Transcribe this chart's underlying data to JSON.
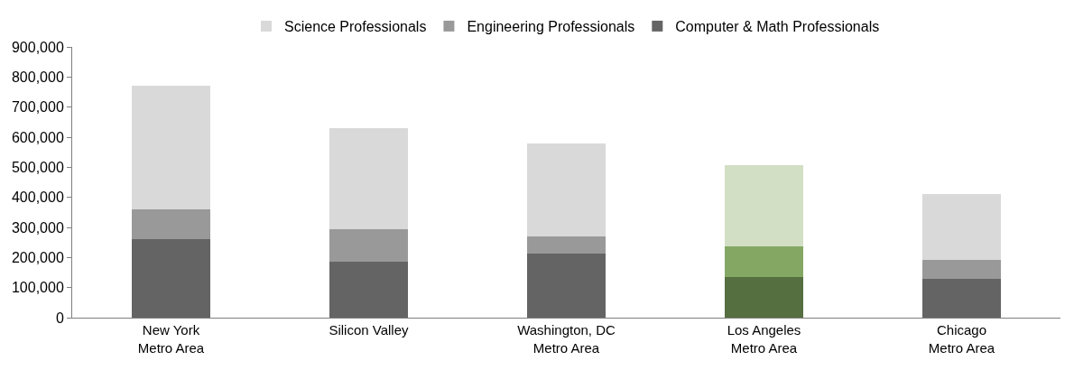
{
  "chart_data": {
    "type": "bar",
    "stacked": true,
    "categories": [
      "New York\nMetro Area",
      "Silicon Valley",
      "Washington, DC\nMetro Area",
      "Los Angeles\nMetro Area",
      "Chicago\nMetro Area"
    ],
    "series": [
      {
        "name": "Computer & Math Professionals",
        "color": "#646464",
        "colors": [
          "#646464",
          "#646464",
          "#646464",
          "#556f40",
          "#646464"
        ],
        "values": [
          261000,
          187000,
          213000,
          135000,
          128000
        ]
      },
      {
        "name": "Engineering Professionals",
        "color": "#999999",
        "colors": [
          "#999999",
          "#999999",
          "#999999",
          "#84a864",
          "#999999"
        ],
        "values": [
          98000,
          106000,
          57000,
          102000,
          65000
        ]
      },
      {
        "name": "Science Professionals",
        "color": "#d9d9d9",
        "colors": [
          "#d9d9d9",
          "#d9d9d9",
          "#d9d9d9",
          "#d3dfc5",
          "#d9d9d9"
        ],
        "values": [
          413000,
          338000,
          310000,
          269000,
          218000
        ]
      }
    ],
    "ylim": [
      0,
      900000
    ],
    "yticks": [
      {
        "value": 0,
        "label": "0"
      },
      {
        "value": 100000,
        "label": "100,000"
      },
      {
        "value": 200000,
        "label": "200,000"
      },
      {
        "value": 300000,
        "label": "300,000"
      },
      {
        "value": 400000,
        "label": "400,000"
      },
      {
        "value": 500000,
        "label": "500,000"
      },
      {
        "value": 600000,
        "label": "600,000"
      },
      {
        "value": 700000,
        "label": "700,000"
      },
      {
        "value": 800000,
        "label": "800,000"
      },
      {
        "value": 900000,
        "label": "900,000"
      }
    ],
    "grid": false,
    "legend": "top"
  }
}
